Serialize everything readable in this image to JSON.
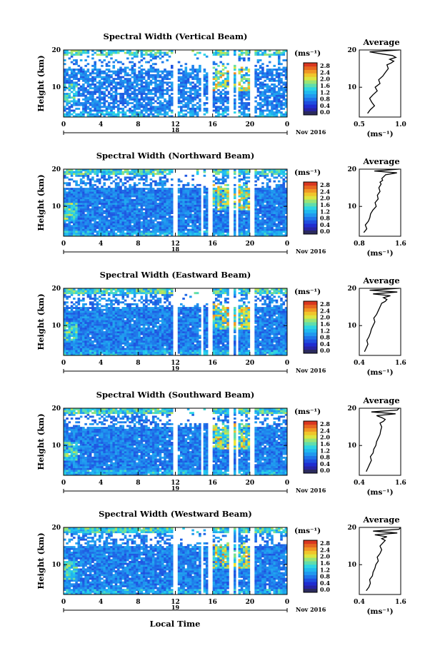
{
  "footer": {
    "xlabel": "Local Time"
  },
  "common": {
    "y_ticks": [
      "20",
      "10"
    ],
    "x_ticks": [
      "0",
      "4",
      "8",
      "12",
      "16",
      "20",
      "0"
    ],
    "date_label": "Nov 2016",
    "colorbar_unit": "(ms⁻¹)",
    "colorbar_ticks": [
      "2.8",
      "2.4",
      "2.0",
      "1.6",
      "1.2",
      "0.8",
      "0.4",
      "0.0"
    ],
    "ylabel": "Height (km)",
    "avg_title": "Average",
    "avg_unit": "(ms⁻¹)",
    "colors": {
      "low": "#1f2fd8",
      "mid": "#23c3ee",
      "high": "#e8401f",
      "line": "#000000"
    }
  },
  "panels": [
    {
      "title": "Spectral Width (Vertical Beam)",
      "day_label": "18",
      "avg_xticks": [
        "0.5",
        "1.0"
      ]
    },
    {
      "title": "Spectral Width (Northward Beam)",
      "day_label": "18",
      "avg_xticks": [
        "0.8",
        "1.6"
      ]
    },
    {
      "title": "Spectral Width (Eastward Beam)",
      "day_label": "19",
      "avg_xticks": [
        "0.4",
        "1.6"
      ]
    },
    {
      "title": "Spectral Width (Southward Beam)",
      "day_label": "19",
      "avg_xticks": [
        "0.4",
        "1.6"
      ]
    },
    {
      "title": "Spectral Width (Westward Beam)",
      "day_label": "19",
      "avg_xticks": [
        "0.4",
        "1.6"
      ]
    }
  ],
  "chart_data": [
    {
      "type": "heatmap",
      "title": "Spectral Width (Vertical Beam)",
      "ylabel": "Height (km)",
      "xlabel": "Local Time",
      "xlim": [
        0,
        24
      ],
      "ylim": [
        2,
        20
      ],
      "clim": [
        0.0,
        3.0
      ],
      "average": {
        "type": "line",
        "title": "Average",
        "xlabel": "(ms⁻¹)",
        "xlim": [
          0.4,
          1.0
        ],
        "ylim": [
          2,
          20
        ],
        "x": [
          0.52,
          0.56,
          0.62,
          0.58,
          0.55,
          0.6,
          0.66,
          0.63,
          0.7,
          0.68,
          0.74,
          0.78,
          0.82,
          0.8,
          0.86,
          0.9,
          0.84,
          0.93,
          0.88,
          0.7,
          0.55,
          0.98
        ],
        "y": [
          3,
          4,
          5,
          6,
          7,
          8,
          9,
          10,
          11,
          12,
          13,
          14,
          15,
          16,
          16.5,
          17,
          17.5,
          18,
          18.5,
          19,
          19.5,
          20
        ]
      }
    },
    {
      "type": "heatmap",
      "title": "Spectral Width (Northward Beam)",
      "ylabel": "Height (km)",
      "xlabel": "Local Time",
      "xlim": [
        0,
        24
      ],
      "ylim": [
        2,
        20
      ],
      "clim": [
        0.0,
        3.0
      ],
      "average": {
        "type": "line",
        "title": "Average",
        "xlabel": "(ms⁻¹)",
        "xlim": [
          0.5,
          1.6
        ],
        "ylim": [
          2,
          20
        ],
        "x": [
          0.62,
          0.7,
          0.66,
          0.74,
          0.78,
          0.8,
          0.86,
          0.95,
          0.92,
          1.0,
          0.98,
          1.05,
          1.02,
          1.08,
          1.05,
          1.12,
          1.1,
          1.15,
          1.2,
          1.5,
          0.9,
          1.55
        ],
        "y": [
          3,
          4,
          5,
          6,
          7,
          8,
          9,
          10,
          11,
          12,
          13,
          14,
          15,
          16,
          16.5,
          17,
          17.5,
          18,
          18.5,
          19,
          19.5,
          20
        ]
      }
    },
    {
      "type": "heatmap",
      "title": "Spectral Width (Eastward Beam)",
      "ylabel": "Height (km)",
      "xlabel": "Local Time",
      "xlim": [
        0,
        24
      ],
      "ylim": [
        2,
        20
      ],
      "clim": [
        0.0,
        3.0
      ],
      "average": {
        "type": "line",
        "title": "Average",
        "xlabel": "(ms⁻¹)",
        "xlim": [
          0.4,
          1.6
        ],
        "ylim": [
          2,
          20
        ],
        "x": [
          0.55,
          0.6,
          0.65,
          0.62,
          0.68,
          0.72,
          0.75,
          0.8,
          0.85,
          0.82,
          0.9,
          0.95,
          1.0,
          1.05,
          1.15,
          1.2,
          1.1,
          1.3,
          0.8,
          1.5,
          0.7,
          1.55
        ],
        "y": [
          3,
          4,
          5,
          6,
          7,
          8,
          9,
          10,
          11,
          12,
          13,
          14,
          15,
          16,
          16.5,
          17,
          17.5,
          18,
          18.5,
          19,
          19.5,
          20
        ]
      }
    },
    {
      "type": "heatmap",
      "title": "Spectral Width (Southward Beam)",
      "ylabel": "Height (km)",
      "xlabel": "Local Time",
      "xlim": [
        0,
        24
      ],
      "ylim": [
        2,
        20
      ],
      "clim": [
        0.0,
        3.0
      ],
      "average": {
        "type": "line",
        "title": "Average",
        "xlabel": "(ms⁻¹)",
        "xlim": [
          0.4,
          1.6
        ],
        "ylim": [
          2,
          20
        ],
        "x": [
          0.6,
          0.65,
          0.7,
          0.75,
          0.72,
          0.8,
          0.82,
          0.88,
          0.9,
          0.95,
          1.0,
          1.02,
          1.05,
          1.0,
          1.1,
          1.15,
          1.05,
          0.9,
          1.45,
          0.75,
          1.5,
          1.55
        ],
        "y": [
          3,
          4,
          5,
          6,
          7,
          8,
          9,
          10,
          11,
          12,
          13,
          14,
          15,
          16,
          16.5,
          17,
          17.5,
          18,
          18.5,
          19,
          19.5,
          20
        ]
      }
    },
    {
      "type": "heatmap",
      "title": "Spectral Width (Westward Beam)",
      "ylabel": "Height (km)",
      "xlabel": "Local Time",
      "xlim": [
        0,
        24
      ],
      "ylim": [
        2,
        20
      ],
      "clim": [
        0.0,
        3.0
      ],
      "average": {
        "type": "line",
        "title": "Average",
        "xlabel": "(ms⁻¹)",
        "xlim": [
          0.4,
          1.6
        ],
        "ylim": [
          2,
          20
        ],
        "x": [
          0.6,
          0.68,
          0.72,
          0.7,
          0.78,
          0.8,
          0.85,
          0.88,
          0.95,
          0.92,
          1.0,
          1.05,
          1.0,
          1.1,
          1.15,
          1.05,
          1.2,
          0.85,
          1.5,
          0.8,
          1.55,
          1.6
        ],
        "y": [
          3,
          4,
          5,
          6,
          7,
          8,
          9,
          10,
          11,
          12,
          13,
          14,
          15,
          16,
          16.5,
          17,
          17.5,
          18,
          18.5,
          19,
          19.5,
          20
        ]
      }
    }
  ]
}
